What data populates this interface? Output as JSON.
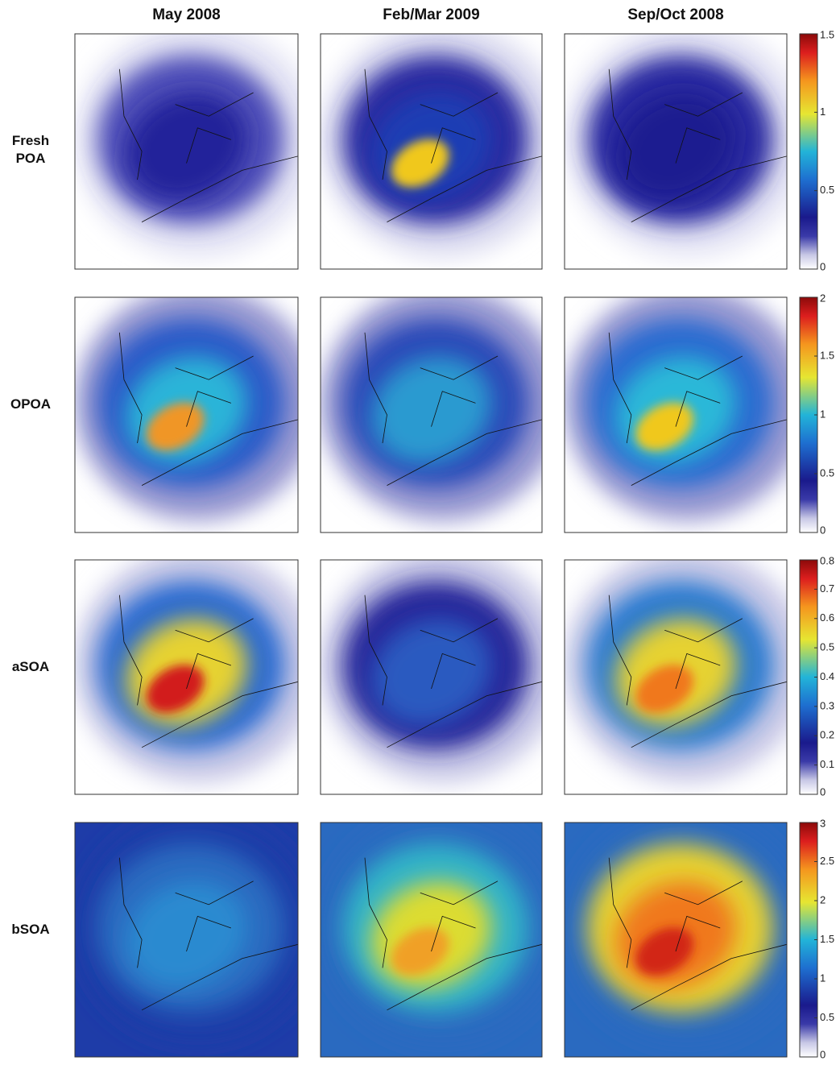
{
  "columns": [
    "May 2008",
    "Feb/Mar 2009",
    "Sep/Oct 2008"
  ],
  "rows": [
    {
      "label": "Fresh POA",
      "colorbar": {
        "lim": [
          0,
          1.5
        ],
        "ticks": [
          0,
          0.5,
          1,
          1.5
        ]
      }
    },
    {
      "label": "OPOA",
      "colorbar": {
        "lim": [
          0,
          2
        ],
        "ticks": [
          0,
          0.5,
          1,
          1.5,
          2
        ]
      }
    },
    {
      "label": "aSOA",
      "colorbar": {
        "lim": [
          0,
          0.8
        ],
        "ticks": [
          0,
          0.1,
          0.2,
          0.3,
          0.4,
          0.5,
          0.6,
          0.7,
          0.8
        ]
      }
    },
    {
      "label": "bSOA",
      "colorbar": {
        "lim": [
          0,
          3
        ],
        "ticks": [
          0,
          0.5,
          1,
          1.5,
          2,
          2.5,
          3
        ]
      }
    }
  ]
}
